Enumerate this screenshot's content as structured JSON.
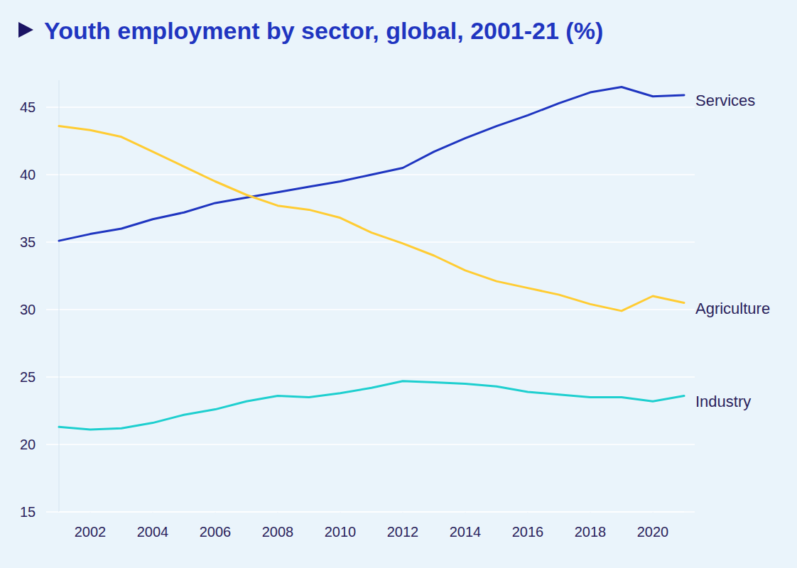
{
  "chart_data": {
    "type": "line",
    "title": "Youth employment by sector, global, 2001-21 (%)",
    "x": [
      2001,
      2002,
      2003,
      2004,
      2005,
      2006,
      2007,
      2008,
      2009,
      2010,
      2011,
      2012,
      2013,
      2014,
      2015,
      2016,
      2017,
      2018,
      2019,
      2020,
      2021
    ],
    "series": [
      {
        "name": "Services",
        "color": "#1F35C0",
        "values": [
          35.1,
          35.6,
          36.0,
          36.7,
          37.2,
          37.9,
          38.3,
          38.7,
          39.1,
          39.5,
          40.0,
          40.5,
          41.7,
          42.7,
          43.6,
          44.4,
          45.3,
          46.1,
          46.5,
          45.8,
          45.9
        ]
      },
      {
        "name": "Agriculture",
        "color": "#FFCC33",
        "values": [
          43.6,
          43.3,
          42.8,
          41.7,
          40.6,
          39.5,
          38.5,
          37.7,
          37.4,
          36.8,
          35.7,
          34.9,
          34.0,
          32.9,
          32.1,
          31.6,
          31.1,
          30.4,
          29.9,
          31.0,
          30.5
        ]
      },
      {
        "name": "Industry",
        "color": "#1ECFCF",
        "values": [
          21.3,
          21.1,
          21.2,
          21.6,
          22.2,
          22.6,
          23.2,
          23.6,
          23.5,
          23.8,
          24.2,
          24.7,
          24.6,
          24.5,
          24.3,
          23.9,
          23.7,
          23.5,
          23.5,
          23.2,
          23.6
        ]
      }
    ],
    "xlim": [
      2001,
      2021
    ],
    "ylim": [
      15,
      47
    ],
    "xticks": [
      2002,
      2004,
      2006,
      2008,
      2010,
      2012,
      2014,
      2016,
      2018,
      2020
    ],
    "yticks": [
      15,
      20,
      25,
      30,
      35,
      40,
      45
    ],
    "grid": true
  }
}
